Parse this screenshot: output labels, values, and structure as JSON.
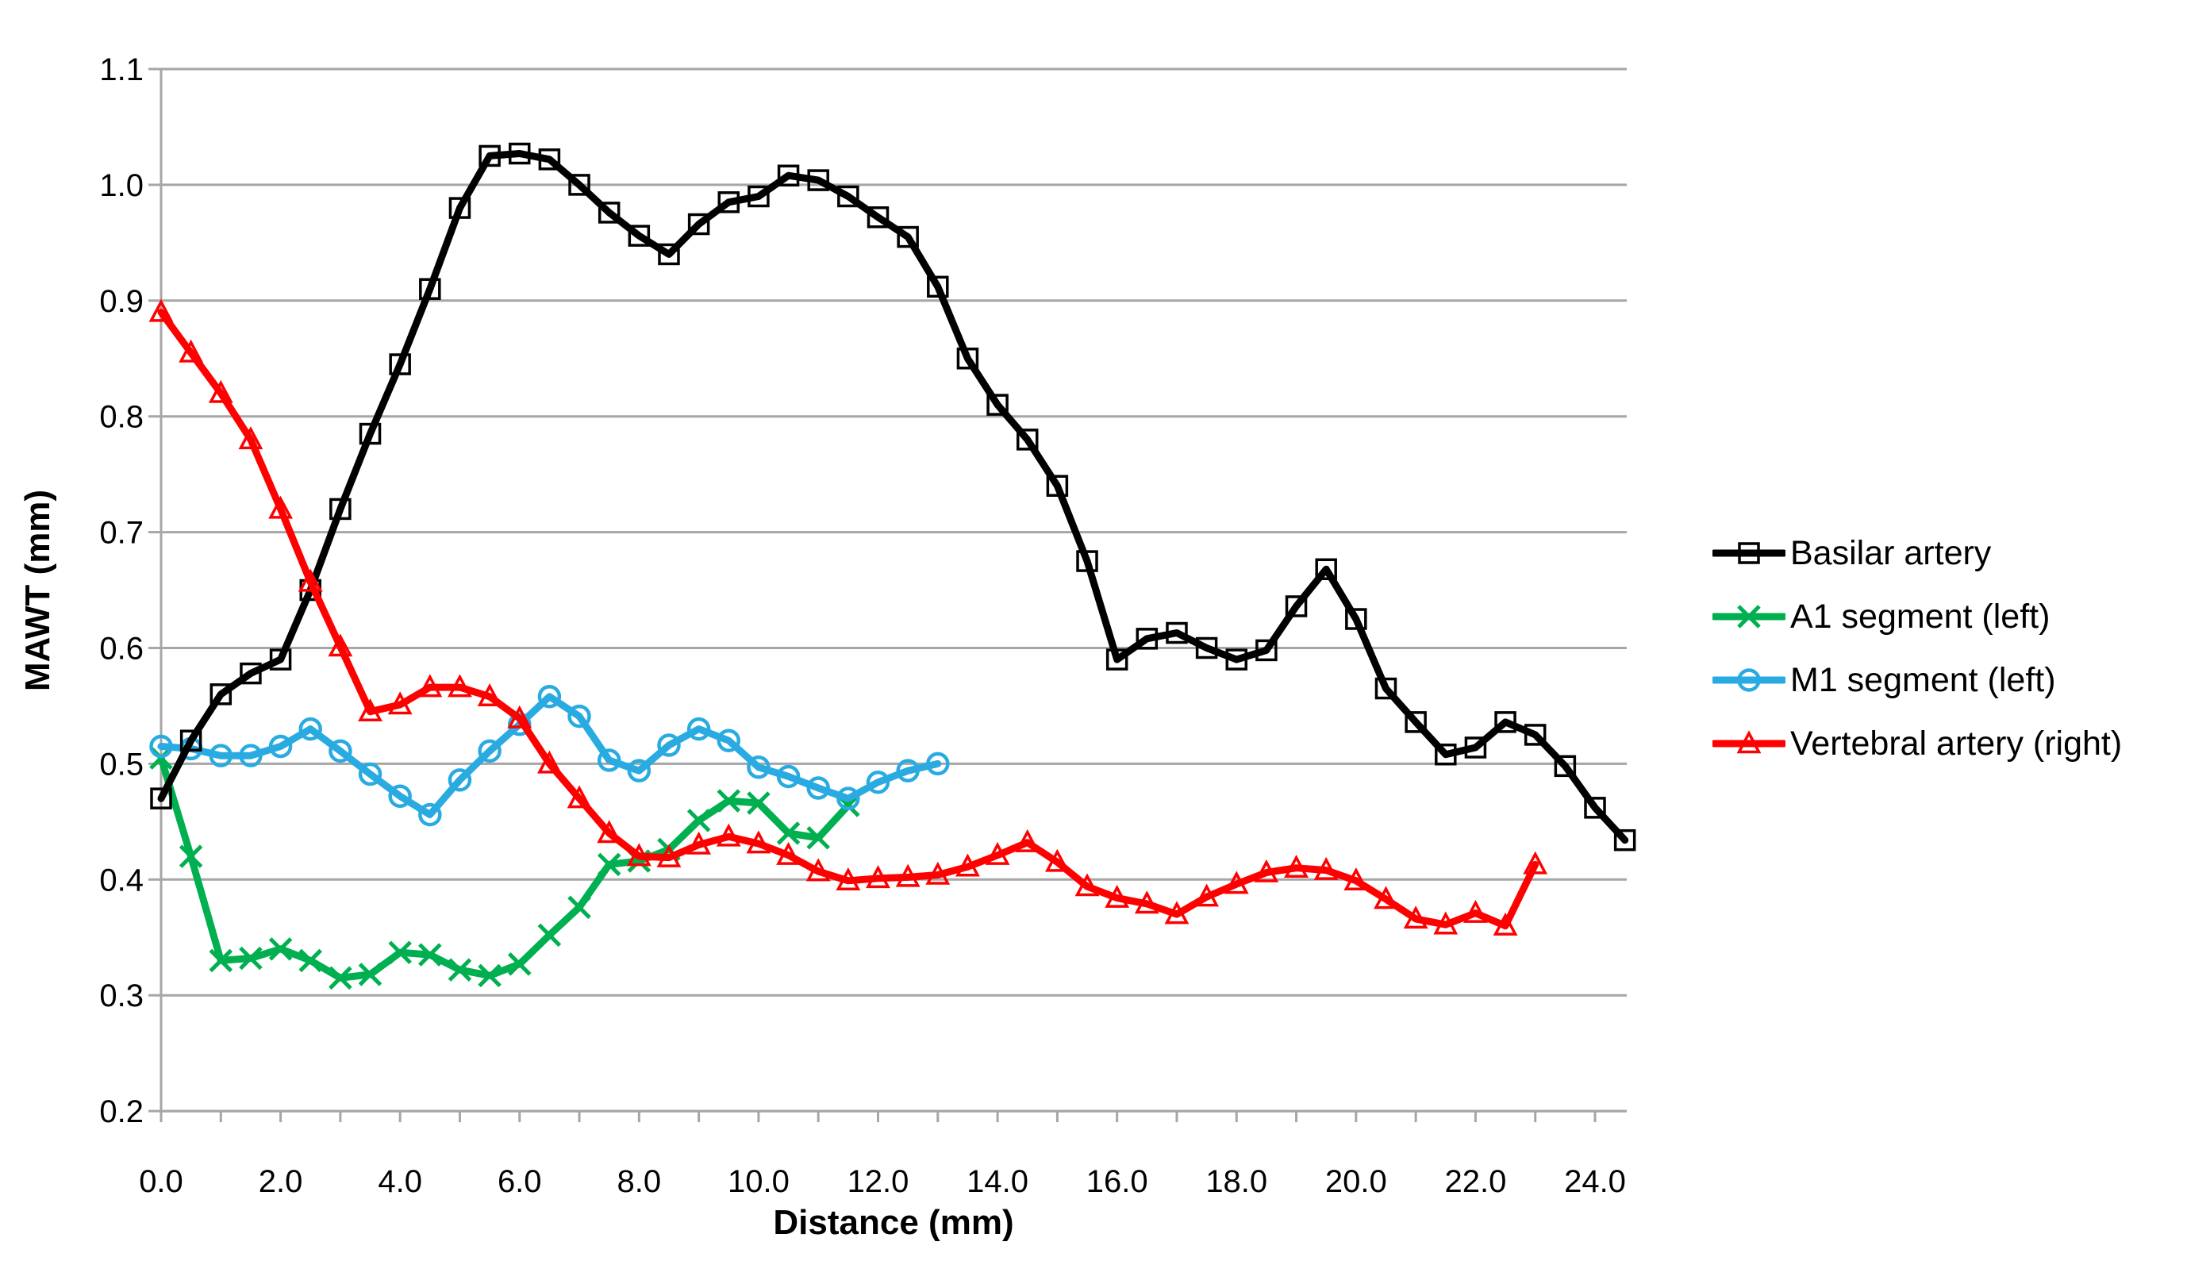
{
  "page": {
    "background": "#FFFFFF"
  },
  "chart_data": {
    "type": "line",
    "title": "",
    "xlabel": "Distance (mm)",
    "ylabel": "MAWT (mm)",
    "xlim": [
      0,
      24.5
    ],
    "ylim": [
      0.2,
      1.1
    ],
    "grid": "horizontal",
    "legend_position": "right-middle",
    "x_tick_values": [
      0,
      2,
      4,
      6,
      8,
      10,
      12,
      14,
      16,
      18,
      20,
      22,
      24
    ],
    "x_tick_labels": [
      "0.0",
      "2.0",
      "4.0",
      "6.0",
      "8.0",
      "10.0",
      "12.0",
      "14.0",
      "16.0",
      "18.0",
      "20.0",
      "22.0",
      "24.0"
    ],
    "x_minor_tick_interval": 1.0,
    "y_tick_values": [
      1.1,
      1.0,
      0.9,
      0.8,
      0.7,
      0.6,
      0.5,
      0.4,
      0.3,
      0.2
    ],
    "y_tick_labels": [
      "1.1",
      "1.0",
      "0.9",
      "0.8",
      "0.7",
      "0.6",
      "0.5",
      "0.4",
      "0.3",
      "0.2"
    ],
    "colors": {
      "grid": "#A6A6A6",
      "axis": "#A6A6A6",
      "text": "#000000"
    },
    "series": [
      {
        "name": "Basilar artery",
        "color": "#000000",
        "marker": "square",
        "x_start": 0,
        "x_step": 0.5,
        "values": [
          0.47,
          0.52,
          0.56,
          0.578,
          0.59,
          0.65,
          0.72,
          0.785,
          0.845,
          0.91,
          0.98,
          1.025,
          1.027,
          1.022,
          1.0,
          0.976,
          0.956,
          0.94,
          0.966,
          0.985,
          0.99,
          1.008,
          1.004,
          0.99,
          0.972,
          0.955,
          0.912,
          0.85,
          0.81,
          0.78,
          0.74,
          0.675,
          0.59,
          0.608,
          0.613,
          0.6,
          0.59,
          0.598,
          0.636,
          0.668,
          0.625,
          0.565,
          0.536,
          0.508,
          0.514,
          0.536,
          0.525,
          0.498,
          0.462,
          0.434
        ]
      },
      {
        "name": "A1 segment (left)",
        "color": "#00B050",
        "marker": "x",
        "x_start": 0,
        "x_step": 0.5,
        "values": [
          0.505,
          0.42,
          0.33,
          0.332,
          0.34,
          0.33,
          0.315,
          0.318,
          0.337,
          0.335,
          0.322,
          0.317,
          0.327,
          0.352,
          0.376,
          0.413,
          0.416,
          0.426,
          0.451,
          0.468,
          0.466,
          0.44,
          0.436,
          0.464
        ]
      },
      {
        "name": "M1 segment (left)",
        "color": "#29ABE2",
        "marker": "circle",
        "x_start": 0,
        "x_step": 0.5,
        "values": [
          0.515,
          0.513,
          0.507,
          0.507,
          0.515,
          0.53,
          0.511,
          0.491,
          0.472,
          0.456,
          0.486,
          0.511,
          0.534,
          0.558,
          0.541,
          0.503,
          0.494,
          0.516,
          0.53,
          0.52,
          0.497,
          0.489,
          0.479,
          0.47,
          0.484,
          0.494,
          0.5
        ]
      },
      {
        "name": "Vertebral artery (right)",
        "color": "#FF0000",
        "marker": "triangle-up",
        "x_start": 0,
        "x_step": 0.5,
        "values": [
          0.89,
          0.855,
          0.82,
          0.78,
          0.72,
          0.657,
          0.601,
          0.545,
          0.551,
          0.566,
          0.566,
          0.558,
          0.539,
          0.5,
          0.47,
          0.44,
          0.42,
          0.419,
          0.43,
          0.437,
          0.431,
          0.421,
          0.407,
          0.399,
          0.401,
          0.402,
          0.404,
          0.411,
          0.421,
          0.432,
          0.415,
          0.394,
          0.384,
          0.379,
          0.37,
          0.385,
          0.396,
          0.406,
          0.41,
          0.408,
          0.399,
          0.383,
          0.366,
          0.361,
          0.371,
          0.36,
          0.413
        ]
      }
    ]
  }
}
